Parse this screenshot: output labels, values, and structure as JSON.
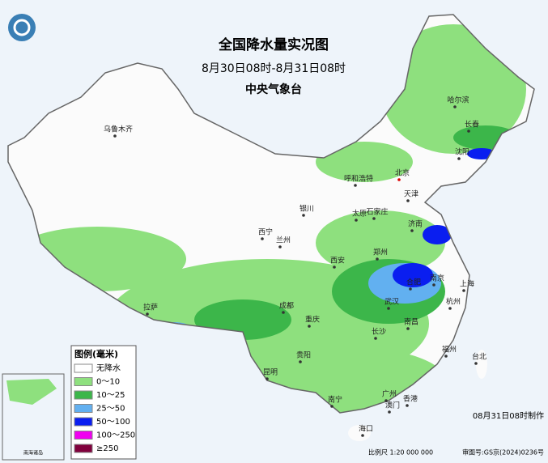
{
  "header": {
    "title": "全国降水量实况图",
    "subtitle": "8月30日08时-8月31日08时",
    "agency": "中央气象台"
  },
  "cities": [
    "乌鲁木齐",
    "哈尔滨",
    "长春",
    "沈阳",
    "北京",
    "天津",
    "呼和浩特",
    "石家庄",
    "太原",
    "银川",
    "西宁",
    "兰州",
    "济南",
    "郑州",
    "西安",
    "合肥",
    "南京",
    "上海",
    "武汉",
    "杭州",
    "成都",
    "拉萨",
    "重庆",
    "南昌",
    "长沙",
    "福州",
    "台北",
    "贵阳",
    "昆明",
    "广州",
    "南宁",
    "香港",
    "澳门",
    "海口"
  ],
  "legend": {
    "title": "图例(毫米)",
    "items": [
      {
        "label": "无降水",
        "color": "#ffffff"
      },
      {
        "label": "0～10",
        "color": "#8ee07e"
      },
      {
        "label": "10～25",
        "color": "#3cb64a"
      },
      {
        "label": "25～50",
        "color": "#62b0f0"
      },
      {
        "label": "50～100",
        "color": "#0a1ef0"
      },
      {
        "label": "100～250",
        "color": "#f000f0"
      },
      {
        "label": "≥250",
        "color": "#80003c"
      }
    ]
  },
  "inset": {
    "label": "南海诸岛"
  },
  "footer": {
    "made": "08月31日08时制作",
    "scale": "比例尺 1:20 000 000",
    "approval": "审图号:GS京(2024)0236号"
  }
}
